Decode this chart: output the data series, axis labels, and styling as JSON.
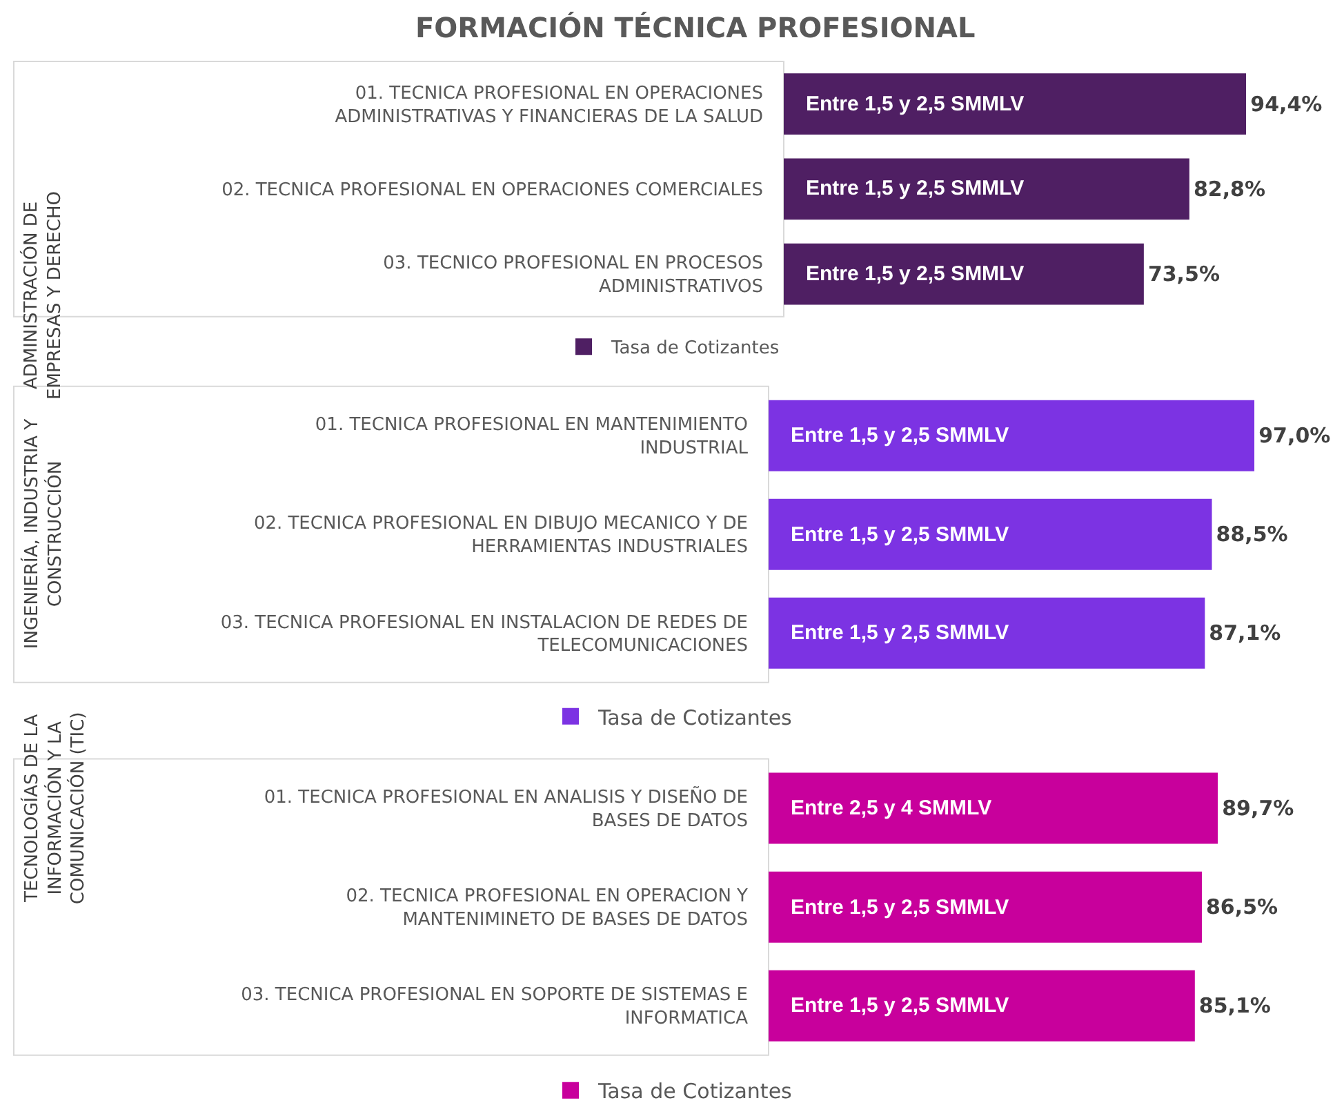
{
  "chart_data": [
    {
      "type": "bar",
      "orientation": "horizontal",
      "title": "FORMACIÓN TÉCNICA PROFESIONAL",
      "ylabel": "ADMINISTRACIÓN DE EMPRESAS Y DERECHO",
      "legend": "bottom",
      "tick_labels": "y",
      "categories": [
        "01. TECNICA PROFESIONAL EN OPERACIONES ADMINISTRATIVAS Y FINANCIERAS DE LA SALUD",
        "02. TECNICA PROFESIONAL EN OPERACIONES COMERCIALES",
        "03. TECNICO PROFESIONAL EN PROCESOS ADMINISTRATIVOS"
      ],
      "series": [
        {
          "name": "Tasa de Cotizantes",
          "color": "#4f1f63",
          "values": [
            94.4,
            82.8,
            73.5
          ],
          "value_labels": [
            "94,4%",
            "82,8%",
            "73,5%"
          ]
        }
      ],
      "annotations": [
        "Entre 1,5 y 2,5 SMMLV",
        "Entre 1,5 y 2,5 SMMLV",
        "Entre 1,5 y 2,5 SMMLV"
      ]
    },
    {
      "type": "bar",
      "orientation": "horizontal",
      "ylabel": "INGENIERÍA, INDUSTRIA Y CONSTRUCCIÓN",
      "legend": "bottom",
      "tick_labels": "y",
      "categories": [
        "01. TECNICA PROFESIONAL EN MANTENIMIENTO INDUSTRIAL",
        "02. TECNICA PROFESIONAL EN DIBUJO MECANICO Y DE HERRAMIENTAS INDUSTRIALES",
        "03. TECNICA PROFESIONAL EN INSTALACION DE REDES DE TELECOMUNICACIONES"
      ],
      "series": [
        {
          "name": "Tasa de Cotizantes",
          "color": "#7c33e3",
          "values": [
            97.0,
            88.5,
            87.1
          ],
          "value_labels": [
            "97,0%",
            "88,5%",
            "87,1%"
          ]
        }
      ],
      "annotations": [
        "Entre 1,5 y 2,5 SMMLV",
        "Entre 1,5 y 2,5 SMMLV",
        "Entre 1,5 y 2,5 SMMLV"
      ]
    },
    {
      "type": "bar",
      "orientation": "horizontal",
      "ylabel": "TECNOLOGÍAS DE LA INFORMACIÓN Y LA COMUNICACIÓN (TIC)",
      "legend": "bottom",
      "tick_labels": "y",
      "categories": [
        "01. TECNICA PROFESIONAL EN ANALISIS Y DISEÑO DE BASES DE DATOS",
        "02. TECNICA PROFESIONAL EN OPERACION Y MANTENIMINETO DE BASES DE DATOS",
        "03. TECNICA PROFESIONAL EN SOPORTE DE SISTEMAS E INFORMATICA"
      ],
      "series": [
        {
          "name": "Tasa de Cotizantes",
          "color": "#c8009c",
          "values": [
            89.7,
            86.5,
            85.1
          ],
          "value_labels": [
            "89,7%",
            "86,5%",
            "85,1%"
          ]
        }
      ],
      "annotations": [
        "Entre 2,5 y 4 SMMLV",
        "Entre 1,5 y 2,5 SMMLV",
        "Entre 1,5 y 2,5 SMMLV"
      ]
    }
  ]
}
